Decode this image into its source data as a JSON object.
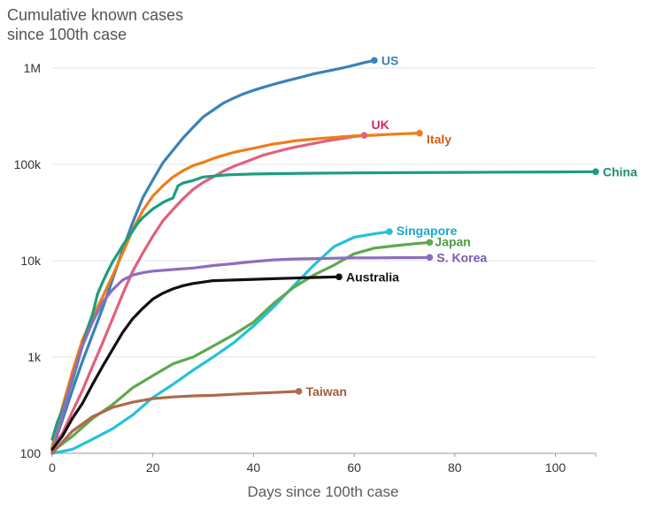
{
  "chart_data": {
    "type": "line",
    "title": "Cumulative known cases",
    "subtitle": "since 100th case",
    "xlabel": "Days since 100th case",
    "ylabel": "",
    "y_scale": "log",
    "xlim": [
      0,
      108
    ],
    "ylim": [
      100,
      2000000
    ],
    "x_ticks": [
      0,
      20,
      40,
      60,
      80,
      100
    ],
    "x_tick_labels": [
      "0",
      "20",
      "40",
      "60",
      "80",
      "100"
    ],
    "y_ticks": [
      100,
      1000,
      10000,
      100000,
      1000000
    ],
    "y_tick_labels": [
      "100",
      "1k",
      "10k",
      "100k",
      "1M"
    ],
    "grid": "horizontal",
    "legend": "direct labels at line ends",
    "series": [
      {
        "name": "US",
        "color": "#3a82b8",
        "label_color": "#3a82b8",
        "x": [
          0,
          2,
          4,
          6,
          8,
          10,
          12,
          14,
          16,
          18,
          20,
          22,
          24,
          26,
          28,
          30,
          32,
          34,
          36,
          38,
          40,
          42,
          44,
          46,
          48,
          50,
          52,
          54,
          56,
          58,
          60,
          62,
          64
        ],
        "y": [
          110,
          220,
          450,
          900,
          1700,
          3200,
          6400,
          13000,
          25000,
          45000,
          69000,
          104000,
          140000,
          188000,
          243000,
          311000,
          367000,
          432000,
          486000,
          540000,
          587000,
          632000,
          678000,
          724000,
          770000,
          819000,
          869000,
          915000,
          960000,
          1010000,
          1070000,
          1140000,
          1200000
        ]
      },
      {
        "name": "UK",
        "color": "#e0617b",
        "label_color": "#d4245c",
        "x": [
          0,
          2,
          4,
          6,
          8,
          10,
          12,
          14,
          16,
          18,
          20,
          22,
          24,
          26,
          28,
          30,
          32,
          34,
          36,
          38,
          40,
          42,
          44,
          46,
          48,
          50,
          52,
          54,
          56,
          58,
          60,
          62
        ],
        "y": [
          115,
          160,
          270,
          450,
          800,
          1400,
          2500,
          4500,
          7800,
          12000,
          18000,
          26000,
          34000,
          44000,
          55000,
          65000,
          74000,
          85000,
          95000,
          104000,
          114000,
          125000,
          133000,
          142000,
          150000,
          157000,
          165000,
          173000,
          180000,
          187000,
          194000,
          200000
        ]
      },
      {
        "name": "Italy",
        "color": "#ef7d18",
        "label_color": "#d65f10",
        "x": [
          0,
          2,
          4,
          6,
          8,
          10,
          12,
          14,
          16,
          18,
          20,
          22,
          24,
          26,
          28,
          30,
          32,
          34,
          36,
          38,
          40,
          42,
          44,
          46,
          48,
          50,
          52,
          54,
          56,
          58,
          60,
          62,
          64,
          66,
          68,
          70,
          72,
          73
        ],
        "y": [
          120,
          300,
          700,
          1500,
          2600,
          4200,
          7000,
          12000,
          21000,
          33000,
          47000,
          60000,
          74000,
          86000,
          97000,
          105000,
          115000,
          124000,
          133000,
          140000,
          147000,
          155000,
          163000,
          168000,
          175000,
          179000,
          183000,
          187000,
          190000,
          194000,
          197000,
          199000,
          201000,
          204000,
          206000,
          208000,
          210000,
          211000
        ]
      },
      {
        "name": "China",
        "color": "#1b9e7f",
        "label_color": "#1b8f6e",
        "x": [
          0,
          1,
          2,
          3,
          4,
          5,
          6,
          7,
          8,
          9,
          10,
          11,
          12,
          13,
          14,
          15,
          16,
          17,
          18,
          19,
          20,
          21,
          22,
          23,
          24,
          25,
          26,
          28,
          30,
          35,
          40,
          50,
          60,
          70,
          80,
          90,
          100,
          108
        ],
        "y": [
          140,
          210,
          280,
          400,
          560,
          850,
          1300,
          1980,
          2760,
          4500,
          5970,
          7700,
          9700,
          11790,
          14380,
          17200,
          20400,
          24500,
          28000,
          31000,
          34500,
          37200,
          40200,
          42700,
          44700,
          59800,
          64000,
          68000,
          74000,
          78000,
          79500,
          80800,
          81500,
          82000,
          82500,
          83000,
          83400,
          83900
        ]
      },
      {
        "name": "Singapore",
        "color": "#24c1de",
        "label_color": "#19a9c8",
        "x": [
          0,
          4,
          8,
          12,
          16,
          20,
          24,
          28,
          32,
          36,
          40,
          44,
          48,
          52,
          56,
          60,
          64,
          67
        ],
        "y": [
          100,
          110,
          140,
          180,
          250,
          380,
          520,
          730,
          1000,
          1400,
          2100,
          3300,
          5500,
          9000,
          14000,
          17500,
          19000,
          20000
        ]
      },
      {
        "name": "Japan",
        "color": "#5ea84e",
        "label_color": "#4f9a3f",
        "x": [
          0,
          4,
          8,
          12,
          16,
          20,
          24,
          28,
          32,
          36,
          40,
          44,
          48,
          52,
          56,
          60,
          64,
          68,
          72,
          75
        ],
        "y": [
          105,
          150,
          230,
          320,
          480,
          640,
          850,
          1000,
          1300,
          1700,
          2300,
          3600,
          5300,
          7100,
          9000,
          11800,
          13500,
          14300,
          15000,
          15500
        ]
      },
      {
        "name": "S. Korea",
        "color": "#8e6dbe",
        "label_color": "#7a5ab0",
        "x": [
          0,
          2,
          4,
          6,
          8,
          10,
          12,
          14,
          16,
          18,
          20,
          24,
          28,
          32,
          36,
          40,
          44,
          48,
          52,
          56,
          60,
          64,
          68,
          72,
          75
        ],
        "y": [
          100,
          250,
          600,
          1300,
          2300,
          3700,
          5000,
          6300,
          7100,
          7500,
          7800,
          8100,
          8400,
          8900,
          9300,
          9800,
          10200,
          10400,
          10500,
          10600,
          10700,
          10700,
          10750,
          10750,
          10800
        ]
      },
      {
        "name": "Australia",
        "color": "#111111",
        "label_color": "#111111",
        "x": [
          0,
          2,
          4,
          6,
          8,
          10,
          12,
          14,
          16,
          18,
          20,
          22,
          24,
          26,
          28,
          30,
          32,
          36,
          40,
          44,
          48,
          52,
          57
        ],
        "y": [
          110,
          150,
          230,
          330,
          520,
          800,
          1200,
          1800,
          2500,
          3200,
          4000,
          4600,
          5100,
          5500,
          5800,
          6000,
          6200,
          6300,
          6400,
          6500,
          6600,
          6700,
          6800
        ]
      },
      {
        "name": "Taiwan",
        "color": "#b0694a",
        "label_color": "#a15c3c",
        "x": [
          0,
          4,
          8,
          12,
          16,
          20,
          24,
          28,
          32,
          36,
          40,
          44,
          49
        ],
        "y": [
          100,
          170,
          240,
          300,
          340,
          370,
          385,
          395,
          400,
          410,
          420,
          428,
          440
        ]
      }
    ]
  }
}
